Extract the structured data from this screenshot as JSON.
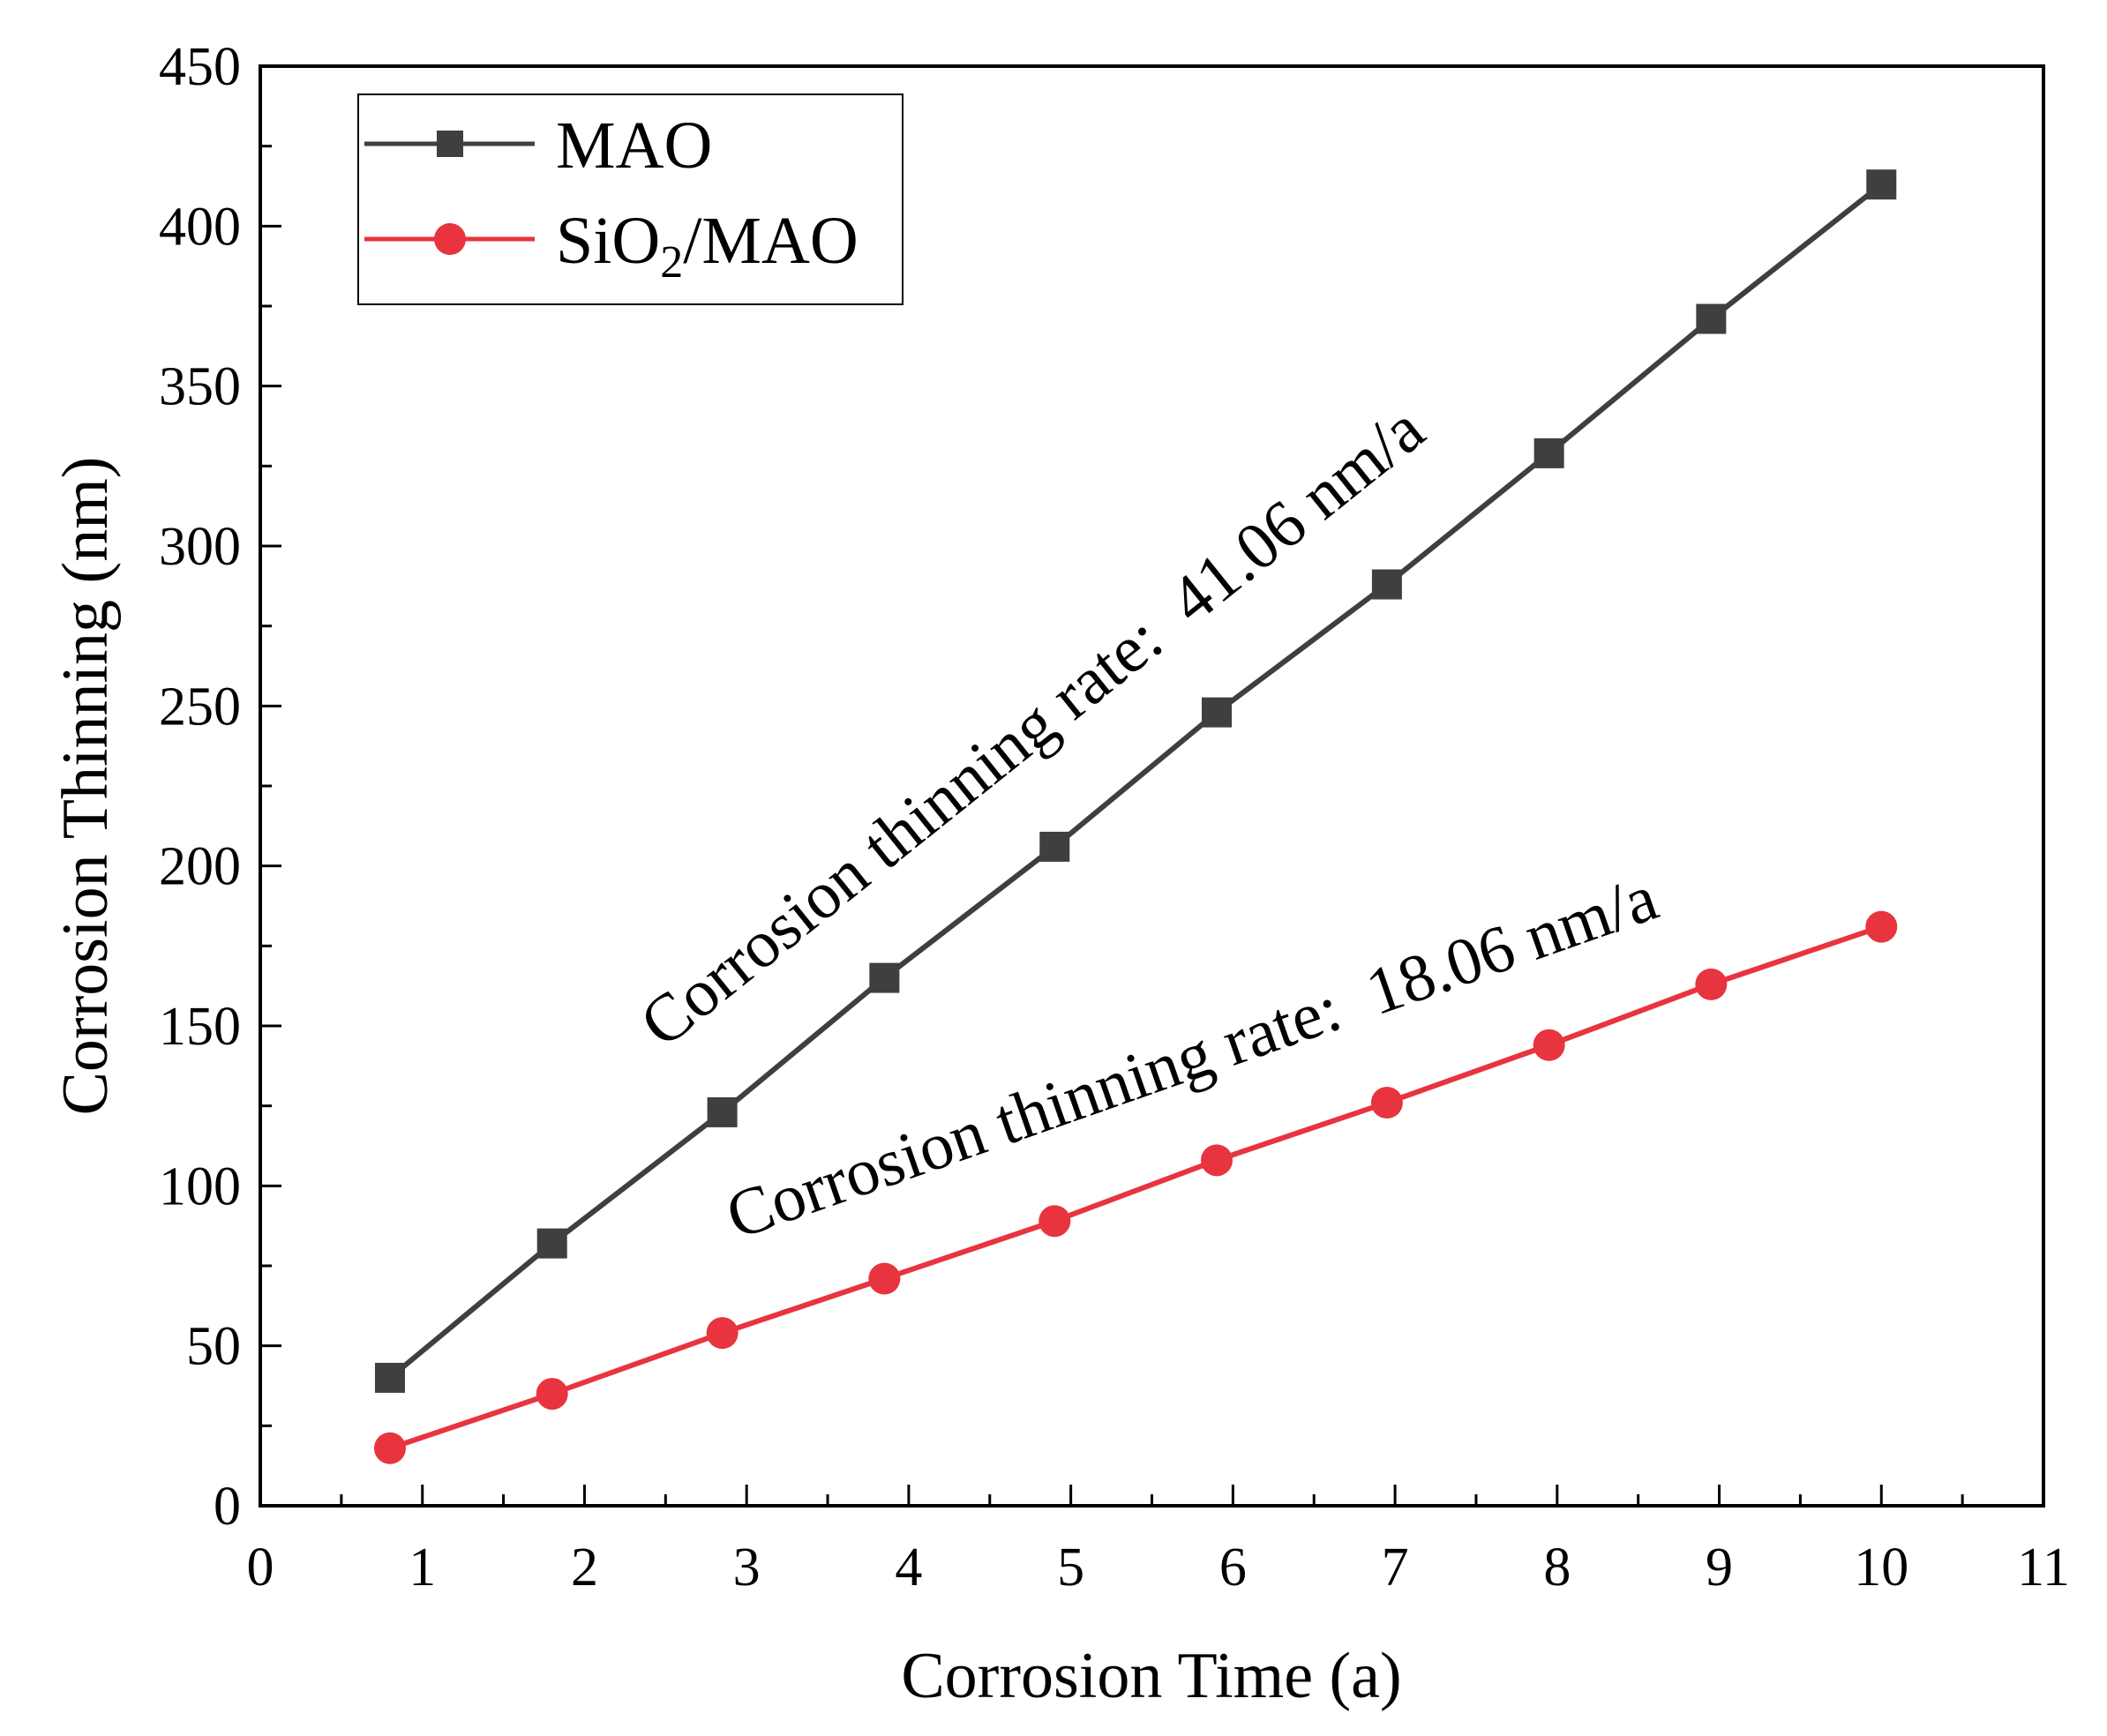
{
  "chart_data": {
    "type": "line",
    "title": "",
    "xlabel": "Corrosion Time (a)",
    "ylabel": "Corrosion Thinning (nm)",
    "xlim": [
      0,
      11
    ],
    "ylim": [
      0,
      450
    ],
    "xticks": [
      0,
      1,
      2,
      3,
      4,
      5,
      6,
      7,
      8,
      9,
      10,
      11
    ],
    "yticks": [
      0,
      50,
      100,
      150,
      200,
      250,
      300,
      350,
      400,
      450
    ],
    "xtick_labels": [
      "0",
      "1",
      "2",
      "3",
      "4",
      "5",
      "6",
      "7",
      "8",
      "9",
      "10",
      "11"
    ],
    "ytick_labels": [
      "0",
      "50",
      "100",
      "150",
      "200",
      "250",
      "300",
      "350",
      "400",
      "450"
    ],
    "legend_position": "top-left",
    "series": [
      {
        "name": "MAO",
        "legend_label": "MAO",
        "marker": "square",
        "color": "#3f3f3f",
        "x": [
          0.8,
          1.8,
          2.85,
          3.85,
          4.9,
          5.9,
          6.95,
          7.95,
          8.95,
          10.0
        ],
        "y": [
          40,
          82,
          123,
          165,
          206,
          248,
          288,
          329,
          371,
          413
        ]
      },
      {
        "name": "SiO2/MAO",
        "legend_label": "SiO",
        "legend_sub": "2",
        "legend_suffix": "/MAO",
        "marker": "circle",
        "color": "#e8343e",
        "x": [
          0.8,
          1.8,
          2.85,
          3.85,
          4.9,
          5.9,
          6.95,
          7.95,
          8.95,
          10.0
        ],
        "y": [
          18,
          35,
          54,
          71,
          89,
          108,
          126,
          144,
          163,
          181
        ]
      }
    ],
    "annotations": [
      {
        "text": "Corrosion thinning rate:  41.06 nm/a",
        "series": "MAO"
      },
      {
        "text": "Corrosion thinning rate:  18.06 nm/a",
        "series": "SiO2/MAO"
      }
    ]
  }
}
